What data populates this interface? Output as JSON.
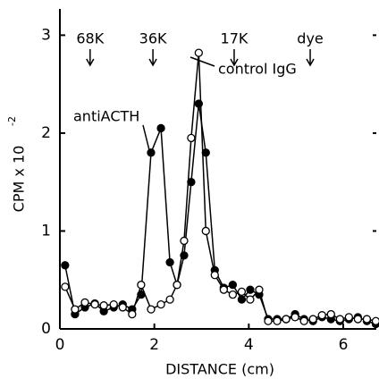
{
  "chart_data": {
    "type": "line",
    "xlabel": "DISTANCE (cm)",
    "ylabel": "CPM x 10",
    "ylabel_exponent": "-2",
    "x": [
      0.11,
      0.32,
      0.53,
      0.74,
      0.93,
      1.14,
      1.33,
      1.53,
      1.72,
      1.93,
      2.14,
      2.33,
      2.48,
      2.63,
      2.78,
      2.94,
      3.09,
      3.28,
      3.47,
      3.66,
      3.85,
      4.03,
      4.22,
      4.41,
      4.6,
      4.79,
      4.98,
      5.17,
      5.36,
      5.55,
      5.74,
      5.93,
      6.12,
      6.31,
      6.5,
      6.69
    ],
    "series": [
      {
        "name": "antiACTH",
        "color": "#000000",
        "marker": "filled",
        "values": [
          0.65,
          0.15,
          0.22,
          0.26,
          0.18,
          0.22,
          0.25,
          0.2,
          0.35,
          1.8,
          2.05,
          0.68,
          0.45,
          0.75,
          1.5,
          2.3,
          1.8,
          0.6,
          0.42,
          0.45,
          0.3,
          0.4,
          0.35,
          0.1,
          0.1,
          0.1,
          0.15,
          0.1,
          0.08,
          0.12,
          0.1,
          0.08,
          0.1,
          0.12,
          0.08,
          0.05
        ]
      },
      {
        "name": "control IgG",
        "color": "#000000",
        "marker": "open",
        "values": [
          0.43,
          0.2,
          0.27,
          0.25,
          0.24,
          0.25,
          0.22,
          0.15,
          0.45,
          0.2,
          0.25,
          0.3,
          0.45,
          0.9,
          1.95,
          2.82,
          1.0,
          0.55,
          0.4,
          0.35,
          0.38,
          0.3,
          0.4,
          0.08,
          0.08,
          0.1,
          0.12,
          0.08,
          0.1,
          0.14,
          0.15,
          0.1,
          0.12,
          0.1,
          0.1,
          0.08
        ]
      }
    ],
    "xlim": [
      0,
      6.7
    ],
    "ylim": [
      0,
      3.25
    ],
    "xticks": [
      0,
      2,
      4,
      6
    ],
    "yticks": [
      0,
      1,
      2,
      3
    ],
    "annotations": [
      {
        "text": "68K",
        "x": 0.64
      },
      {
        "text": "36K",
        "x": 1.97
      },
      {
        "text": "17K",
        "x": 3.69
      },
      {
        "text": "dye",
        "x": 5.3
      }
    ]
  }
}
